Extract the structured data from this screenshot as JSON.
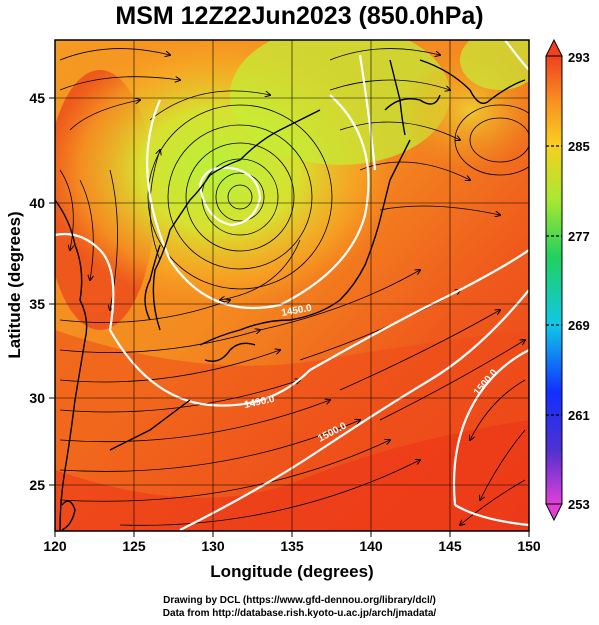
{
  "title": "MSM 12Z22Jun2023 (850.0hPa)",
  "map": {
    "xlabel": "Longitude (degrees)",
    "ylabel": "Latitude  (degrees)",
    "xticks": [
      "120",
      "125",
      "130",
      "135",
      "140",
      "145",
      "150"
    ],
    "yticks": [
      "25",
      "30",
      "35",
      "40",
      "45"
    ],
    "xlim": [
      120,
      150
    ],
    "ylim": [
      22.5,
      47.6
    ]
  },
  "colorbar": {
    "ticks": [
      "293",
      "285",
      "277",
      "269",
      "261",
      "253"
    ],
    "range": [
      253,
      293
    ]
  },
  "contour_labels": [
    "1490.0",
    "1500.0",
    "1500.0",
    "1450.0"
  ],
  "credits": {
    "line1": "Drawing by DCL (https://www.gfd-dennou.org/library/dcl/)",
    "line2": "Data from http://database.rish.kyoto-u.ac.jp/arch/jmadata/"
  },
  "colors": {
    "cold": "#b8f23a",
    "mid": "#f7a020",
    "warm": "#ee3a18",
    "contour": "#ffffff",
    "coast": "#000000"
  }
}
